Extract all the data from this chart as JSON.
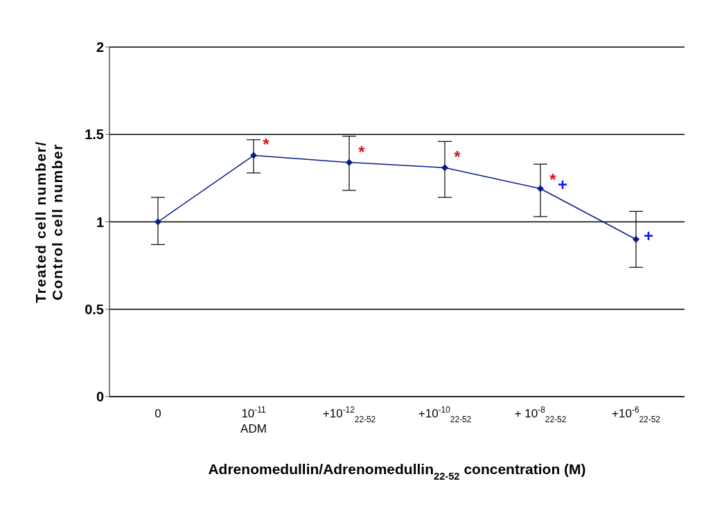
{
  "chart_data": {
    "type": "line",
    "xlabel": "Adrenomedullin/Adrenomedullin$_{22-52}$ concentration (M)",
    "ylabel": "Treated cell number/Control cell number",
    "categories": [
      "0",
      "10$^{-11}$\nADM",
      "+10$^{-12}$$_{22-52}$",
      "+10$^{-10}$$_{22-52}$",
      "+ 10$^{-8}$$_{22-52}$",
      "+10$^{-6}$$_{22-52}$"
    ],
    "series": [
      {
        "color": "#0a1a8c",
        "values": [
          1.0,
          1.38,
          1.34,
          1.31,
          1.19,
          0.9
        ],
        "errors": [
          [
            0.87,
            1.14
          ],
          [
            1.28,
            1.47
          ],
          [
            1.18,
            1.49
          ],
          [
            1.14,
            1.46
          ],
          [
            1.03,
            1.33
          ],
          [
            0.74,
            1.06
          ]
        ]
      }
    ],
    "ylim": [
      0,
      2
    ],
    "yticks": [
      0,
      0.5,
      1,
      1.5,
      2
    ],
    "grid": "y",
    "marker": "diamond",
    "line_style": "solid",
    "legend": false,
    "annotations": [
      {
        "text": "*",
        "x": "10$^{-11}$\nADM",
        "y": 1.44
      },
      {
        "text": "*",
        "x": "+10$^{-12}$$_{22-52}$",
        "y": 1.4
      },
      {
        "text": "*",
        "x": "+10$^{-10}$$_{22-52}$",
        "y": 1.37
      },
      {
        "text": "*",
        "x": "+ 10$^{-8}$$_{22-52}$",
        "y": 1.24
      },
      {
        "text": "+",
        "x": "+ 10$^{-8}$$_{22-52}$",
        "y": 1.21
      },
      {
        "text": "+",
        "x": "+10$^{-6}$$_{22-52}$",
        "y": 0.92
      }
    ]
  }
}
